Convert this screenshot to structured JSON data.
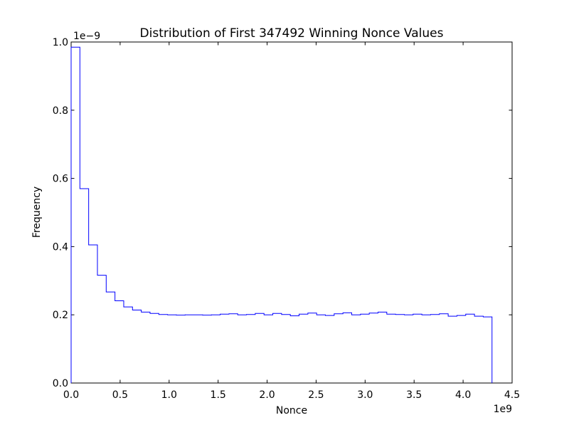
{
  "chart_data": {
    "type": "line",
    "style": "step-histogram",
    "title": "Distribution of First 347492 Winning Nonce Values",
    "xlabel": "Nonce",
    "ylabel": "Frequency",
    "x_scale_offset_text": "1e9",
    "y_scale_offset_text": "1e−9",
    "xlim": [
      0,
      4.5
    ],
    "ylim": [
      0,
      1.0
    ],
    "x_tick_labels": [
      "0.0",
      "0.5",
      "1.0",
      "1.5",
      "2.0",
      "2.5",
      "3.0",
      "3.5",
      "4.0",
      "4.5"
    ],
    "y_tick_labels": [
      "0.0",
      "0.2",
      "0.4",
      "0.6",
      "0.8",
      "1.0"
    ],
    "x_units": "nonce value (axis in units of 1e9)",
    "y_units": "frequency density (axis in units of 1e-9)",
    "bin_start": 0,
    "bin_width": 0.089478485,
    "bin_values": [
      0.985,
      0.57,
      0.405,
      0.316,
      0.267,
      0.241,
      0.223,
      0.214,
      0.208,
      0.204,
      0.201,
      0.2,
      0.199,
      0.2,
      0.2,
      0.199,
      0.2,
      0.202,
      0.203,
      0.2,
      0.201,
      0.204,
      0.2,
      0.204,
      0.201,
      0.197,
      0.202,
      0.205,
      0.2,
      0.198,
      0.203,
      0.206,
      0.2,
      0.202,
      0.205,
      0.208,
      0.202,
      0.201,
      0.2,
      0.202,
      0.2,
      0.201,
      0.203,
      0.196,
      0.198,
      0.202,
      0.196,
      0.194
    ],
    "line_color": "#0000ff",
    "axis_color": "#000000",
    "background_color": "#ffffff",
    "grid": false,
    "legend": null
  }
}
